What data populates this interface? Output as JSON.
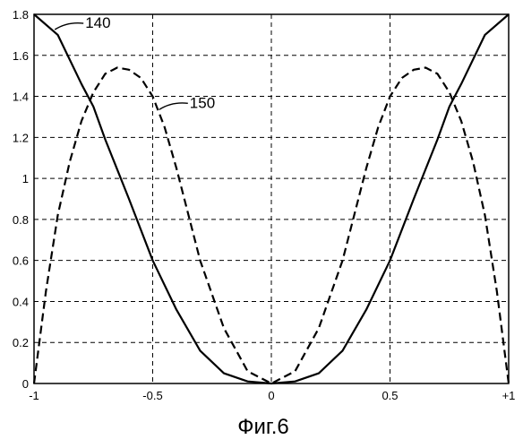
{
  "chart_data": {
    "type": "line",
    "caption": "Фиг.6",
    "xlim": [
      -1,
      1
    ],
    "ylim": [
      0,
      1.8
    ],
    "grid": true,
    "x_ticks": [
      -1,
      -0.5,
      0,
      0.5,
      1
    ],
    "x_tick_labels": [
      "-1",
      "-0.5",
      "0",
      "0.5",
      "+1"
    ],
    "y_ticks": [
      0,
      0.2,
      0.4,
      0.6,
      0.8,
      1,
      1.2,
      1.4,
      1.6,
      1.8
    ],
    "y_tick_labels": [
      "0",
      "0.2",
      "0.4",
      "0.6",
      "0.8",
      "1",
      "1.2",
      "1.4",
      "1.6",
      "1.8"
    ],
    "series": [
      {
        "name": "140",
        "style": "solid",
        "x": [
          -1,
          -0.9,
          -0.8,
          -0.75,
          -0.7,
          -0.6,
          -0.5,
          -0.4,
          -0.3,
          -0.2,
          -0.1,
          0,
          0.1,
          0.2,
          0.3,
          0.4,
          0.5,
          0.6,
          0.7,
          0.75,
          0.8,
          0.9,
          1
        ],
        "y": [
          1.8,
          1.7,
          1.46,
          1.35,
          1.19,
          0.9,
          0.6,
          0.36,
          0.16,
          0.05,
          0.01,
          0.0,
          0.01,
          0.05,
          0.16,
          0.36,
          0.6,
          0.9,
          1.19,
          1.35,
          1.46,
          1.7,
          1.8
        ]
      },
      {
        "name": "150",
        "style": "dashed",
        "x": [
          -1,
          -0.95,
          -0.9,
          -0.85,
          -0.8,
          -0.75,
          -0.7,
          -0.65,
          -0.6,
          -0.55,
          -0.5,
          -0.45,
          -0.4,
          -0.3,
          -0.2,
          -0.1,
          0,
          0.1,
          0.2,
          0.3,
          0.4,
          0.45,
          0.5,
          0.55,
          0.6,
          0.65,
          0.7,
          0.75,
          0.8,
          0.85,
          0.9,
          0.95,
          1
        ],
        "y": [
          0.0,
          0.45,
          0.82,
          1.08,
          1.28,
          1.42,
          1.51,
          1.54,
          1.53,
          1.49,
          1.4,
          1.25,
          1.05,
          0.6,
          0.27,
          0.06,
          0.0,
          0.06,
          0.27,
          0.6,
          1.05,
          1.25,
          1.4,
          1.49,
          1.53,
          1.54,
          1.51,
          1.42,
          1.28,
          1.08,
          0.82,
          0.45,
          0.0
        ]
      }
    ],
    "annotations": [
      {
        "text": "140",
        "series": "140",
        "at_x": -0.92,
        "at_y": 1.73
      },
      {
        "text": "150",
        "series": "150",
        "at_x": -0.48,
        "at_y": 1.34
      }
    ]
  }
}
